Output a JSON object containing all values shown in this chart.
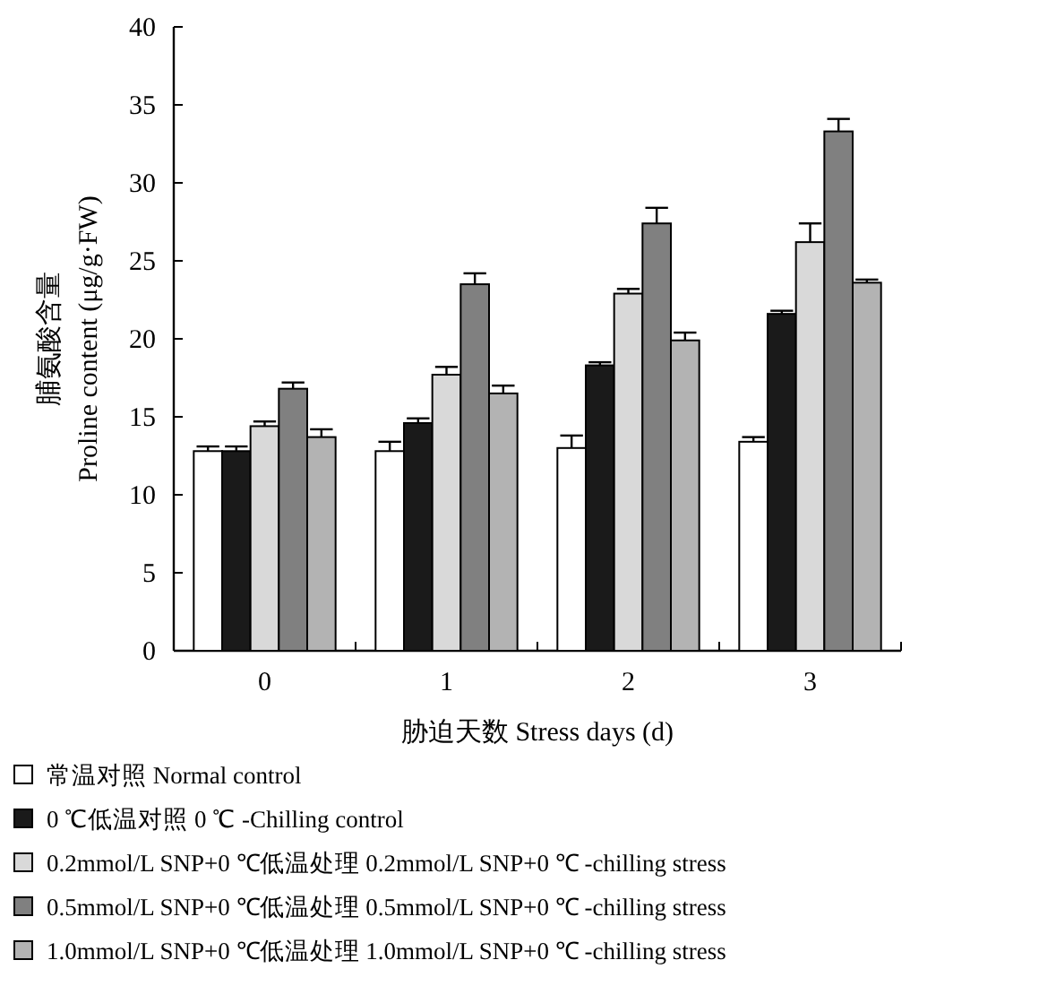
{
  "chart_data": {
    "type": "bar",
    "xlabel": "胁迫天数 Stress days (d)",
    "ylabel": "脯氨酸含量\nProline content (μg/g·FW)",
    "categories": [
      "0",
      "1",
      "2",
      "3"
    ],
    "ylim": [
      0,
      40
    ],
    "yticks": [
      0,
      5,
      10,
      15,
      20,
      25,
      30,
      35,
      40
    ],
    "grid": false,
    "legend": "bottom",
    "series": [
      {
        "name": "常温对照 Normal control",
        "color": "#ffffff",
        "values": [
          12.8,
          12.8,
          13.0,
          13.4
        ],
        "errors": [
          0.3,
          0.6,
          0.8,
          0.3
        ]
      },
      {
        "name": "0 ℃低温对照 0 ℃ -Chilling control",
        "color": "#1a1a1a",
        "values": [
          12.8,
          14.6,
          18.3,
          21.6
        ],
        "errors": [
          0.3,
          0.3,
          0.2,
          0.2
        ]
      },
      {
        "name": "0.2mmol/L SNP+0 ℃低温处理 0.2mmol/L SNP+0 ℃ -chilling stress",
        "color": "#d9d9d9",
        "values": [
          14.4,
          17.7,
          22.9,
          26.2
        ],
        "errors": [
          0.3,
          0.5,
          0.3,
          1.2
        ]
      },
      {
        "name": "0.5mmol/L SNP+0 ℃低温处理 0.5mmol/L SNP+0 ℃ -chilling stress",
        "color": "#808080",
        "values": [
          16.8,
          23.5,
          27.4,
          33.3
        ],
        "errors": [
          0.4,
          0.7,
          1.0,
          0.8
        ]
      },
      {
        "name": "1.0mmol/L SNP+0 ℃低温处理 1.0mmol/L SNP+0 ℃ -chilling stress",
        "color": "#b3b3b3",
        "values": [
          13.7,
          16.5,
          19.9,
          23.6
        ],
        "errors": [
          0.5,
          0.5,
          0.5,
          0.2
        ]
      }
    ]
  }
}
